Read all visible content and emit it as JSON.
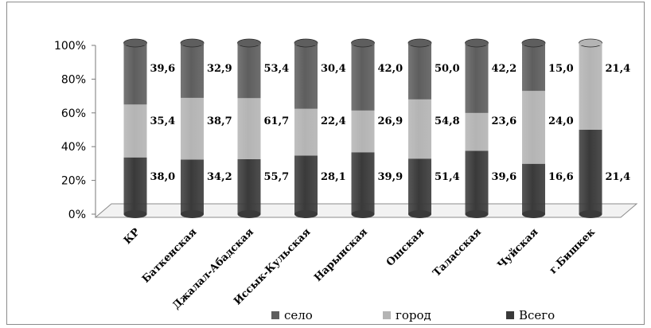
{
  "chart_data": {
    "type": "bar",
    "stacked": true,
    "percent_stacked": true,
    "three_d": true,
    "categories": [
      "КР",
      "Баткенская",
      "Джалал-Абадская",
      "Иссык-Кульская",
      "Нарынская",
      "Ошская",
      "Таласская",
      "Чуйская",
      "г.Бишкек"
    ],
    "series": [
      {
        "name": "Всего",
        "values": [
          "38,0",
          "34,2",
          "55,7",
          "28,1",
          "39,9",
          "51,4",
          "39,6",
          "16,6",
          "21,4"
        ],
        "color": "#3a3a3a"
      },
      {
        "name": "город",
        "values": [
          "35,4",
          "38,7",
          "61,7",
          "22,4",
          "26,9",
          "54,8",
          "23,6",
          "24,0",
          "21,4"
        ],
        "color": "#b4b4b4"
      },
      {
        "name": "село",
        "values": [
          "39,6",
          "32,9",
          "53,4",
          "30,4",
          "42,0",
          "50,0",
          "42,2",
          "15,0",
          ""
        ],
        "color": "#5e5e5e"
      }
    ],
    "ylim": [
      0,
      100
    ],
    "yticks": [
      "0%",
      "20%",
      "40%",
      "60%",
      "80%",
      "100%"
    ],
    "legend": {
      "position": "bottom",
      "order": [
        "село",
        "город",
        "Всего"
      ]
    },
    "grid": false
  }
}
